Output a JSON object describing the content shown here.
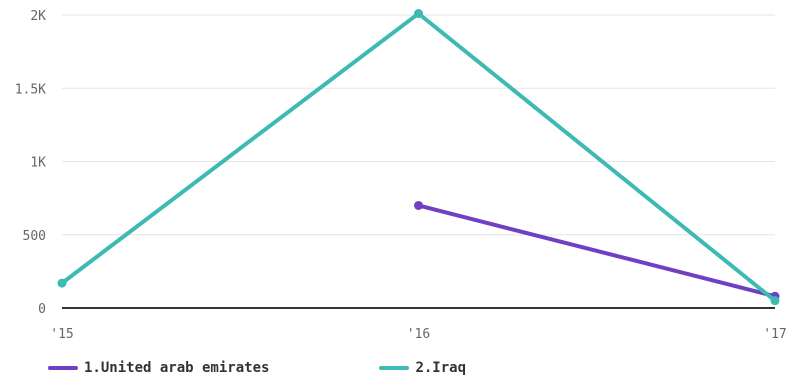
{
  "chart_data": {
    "type": "line",
    "x": [
      "'15",
      "'16",
      "'17"
    ],
    "y_ticks": [
      "0",
      "500",
      "1K",
      "1.5K",
      "2K"
    ],
    "ylim": [
      0,
      2000
    ],
    "grid": true,
    "legend_position": "bottom-left",
    "series": [
      {
        "name": "1.United arab emirates",
        "color": "#6f3fc4",
        "values": [
          null,
          700,
          80
        ]
      },
      {
        "name": "2.Iraq",
        "color": "#3dbab3",
        "values": [
          170,
          2010,
          50
        ]
      }
    ]
  }
}
